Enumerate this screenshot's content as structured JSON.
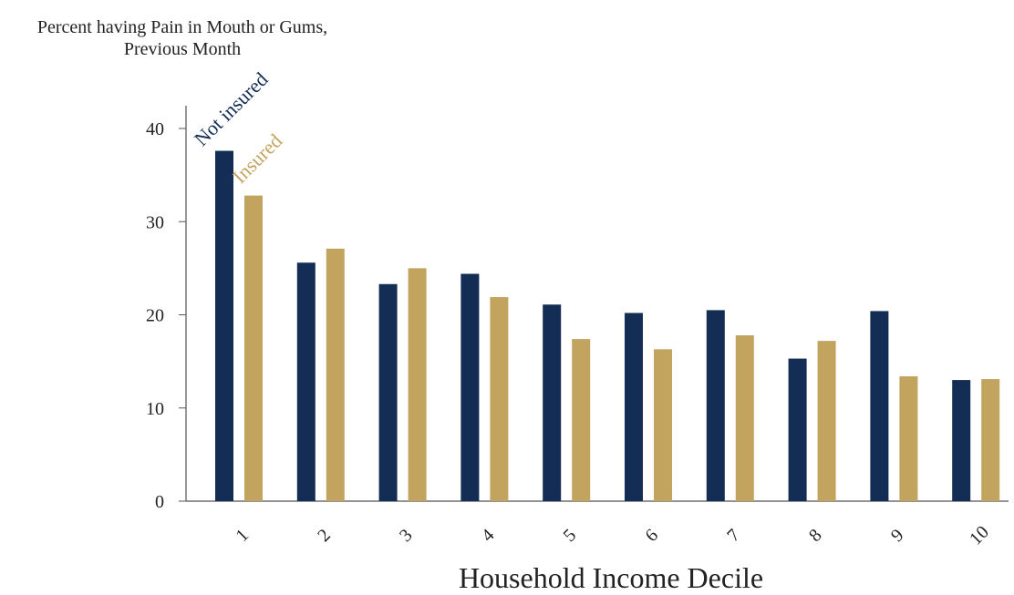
{
  "chart_data": {
    "type": "bar",
    "ylabel_lines": [
      "Percent having Pain in Mouth or Gums,",
      "Previous Month"
    ],
    "xlabel": "Household Income Decile",
    "ylim": [
      0,
      40
    ],
    "y_ticks": [
      "0",
      "10",
      "20",
      "30",
      "40"
    ],
    "categories": [
      "1",
      "2",
      "3",
      "4",
      "5",
      "6",
      "7",
      "8",
      "9",
      "10"
    ],
    "series": [
      {
        "name": "Not insured",
        "color": "#142d55",
        "values": [
          37.6,
          25.6,
          23.3,
          24.4,
          21.1,
          20.2,
          20.5,
          15.3,
          20.4,
          13.0
        ]
      },
      {
        "name": "Insured",
        "color": "#c3a45f",
        "values": [
          32.8,
          27.1,
          25.0,
          21.9,
          17.4,
          16.3,
          17.8,
          17.2,
          13.4,
          13.1
        ]
      }
    ],
    "grid": false,
    "legend": "labels on first bars"
  }
}
